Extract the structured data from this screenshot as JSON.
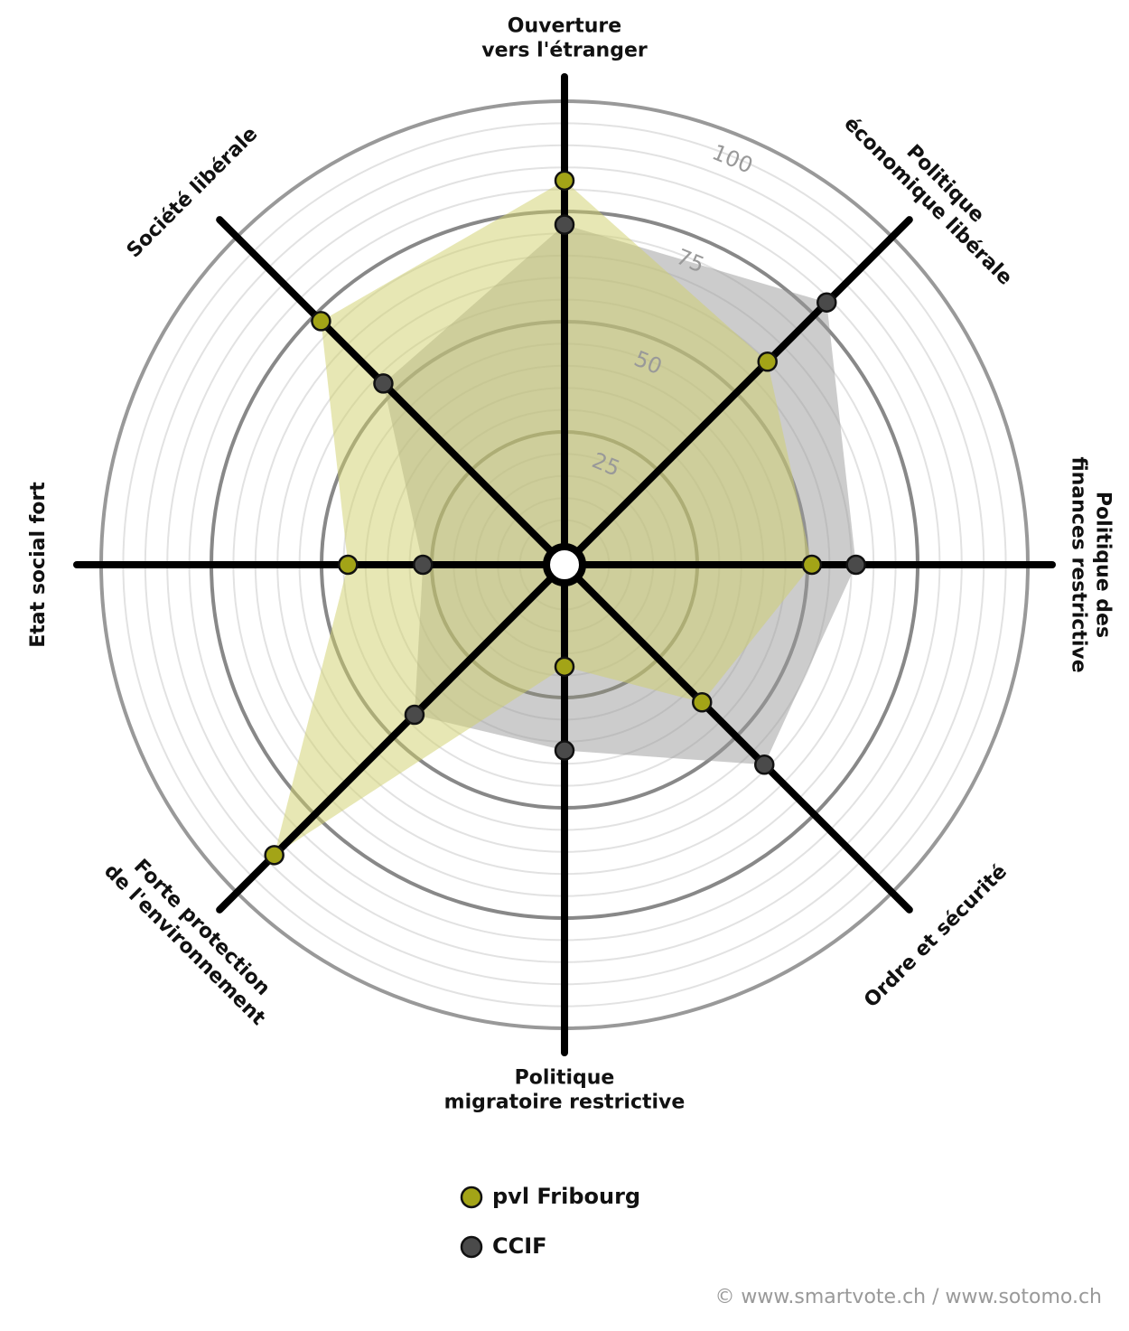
{
  "chart_data": {
    "type": "radar",
    "categories": [
      [
        "Ouverture",
        "vers l'étranger"
      ],
      [
        "Politique",
        "économique libérale"
      ],
      [
        "Politique des",
        "finances restrictive"
      ],
      [
        "Ordre et sécurité"
      ],
      [
        "Politique",
        "migratoire restrictive"
      ],
      [
        "Forte protection",
        "de l'environnement"
      ],
      [
        "Etat social fort"
      ],
      [
        "Société libérale"
      ]
    ],
    "series": [
      {
        "name": "pvl Fribourg",
        "color": "#a3a417",
        "fill": "#cfd06a",
        "values": [
          82,
          60,
          51,
          39,
          18,
          88,
          44,
          73
        ]
      },
      {
        "name": "CCIF",
        "color": "#4a4a4a",
        "fill": "#9a9a9a",
        "values": [
          72,
          79,
          61,
          59,
          37,
          43,
          27,
          53
        ]
      }
    ],
    "rlim": [
      0,
      100
    ],
    "rticks": [
      25,
      50,
      75,
      100
    ],
    "minor_rticks": [
      5,
      10,
      15,
      20,
      30,
      35,
      40,
      45,
      55,
      60,
      65,
      70,
      80,
      85,
      90,
      95
    ],
    "source": "© www.smartvote.ch / www.sotomo.ch"
  }
}
